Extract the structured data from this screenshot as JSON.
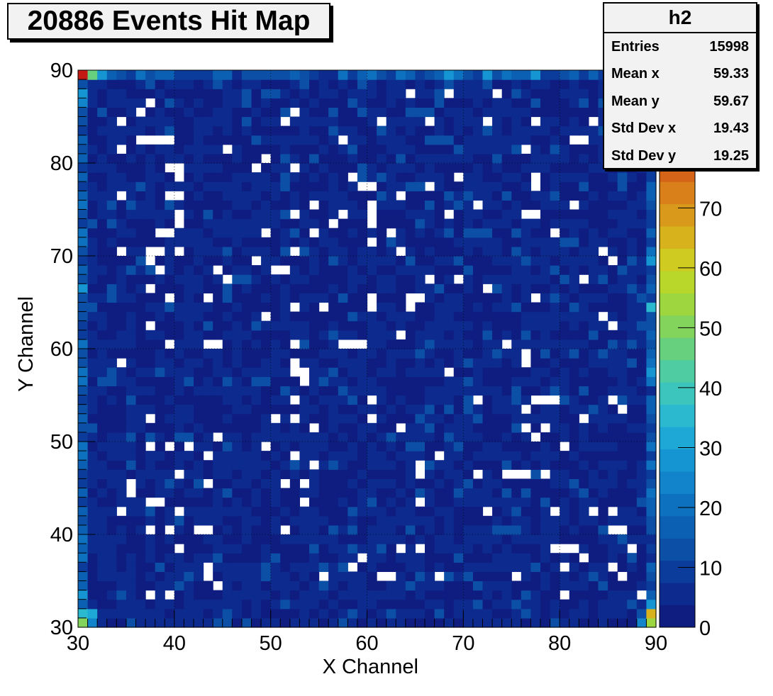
{
  "title": "20886 Events Hit Map",
  "stats": {
    "name": "h2",
    "rows": [
      {
        "label": "Entries",
        "value": "15998"
      },
      {
        "label": "Mean x",
        "value": "59.33"
      },
      {
        "label": "Mean y",
        "value": "59.67"
      },
      {
        "label": "Std Dev x",
        "value": "19.43"
      },
      {
        "label": "Std Dev y",
        "value": "19.25"
      }
    ]
  },
  "chart_data": {
    "type": "heatmap",
    "title": "20886 Events Hit Map",
    "xlabel": "X Channel",
    "ylabel": "Y Channel",
    "xlim": [
      30,
      90
    ],
    "ylim": [
      30,
      90
    ],
    "x_ticks": [
      30,
      40,
      50,
      60,
      70,
      80,
      90
    ],
    "y_ticks": [
      30,
      40,
      50,
      60,
      70,
      80,
      90
    ],
    "bins_x": 60,
    "bins_y": 60,
    "zlim": [
      0,
      93
    ],
    "z_ticks": [
      0,
      10,
      20,
      30,
      40,
      50,
      60,
      70
    ],
    "grid": true,
    "typical_bin_value": 4,
    "empty_bins": [
      [
        37,
        86
      ],
      [
        34,
        84
      ],
      [
        36,
        85
      ],
      [
        52,
        85
      ],
      [
        51,
        84
      ],
      [
        64,
        87
      ],
      [
        68,
        87
      ],
      [
        73,
        87
      ],
      [
        61,
        84
      ],
      [
        66,
        84
      ],
      [
        72,
        84
      ],
      [
        77,
        84
      ],
      [
        83,
        84
      ],
      [
        89,
        84
      ],
      [
        88,
        83
      ],
      [
        36,
        82
      ],
      [
        37,
        82
      ],
      [
        38,
        82
      ],
      [
        39,
        82
      ],
      [
        57,
        82
      ],
      [
        81,
        82
      ],
      [
        82,
        82
      ],
      [
        34,
        81
      ],
      [
        45,
        81
      ],
      [
        76,
        81
      ],
      [
        49,
        80
      ],
      [
        48,
        79
      ],
      [
        39,
        79
      ],
      [
        40,
        79
      ],
      [
        40,
        78
      ],
      [
        52,
        79
      ],
      [
        58,
        78
      ],
      [
        69,
        78
      ],
      [
        77,
        78
      ],
      [
        77,
        77
      ],
      [
        66,
        77
      ],
      [
        59,
        77
      ],
      [
        60,
        77
      ],
      [
        40,
        76
      ],
      [
        63,
        76
      ],
      [
        34,
        76
      ],
      [
        39,
        76
      ],
      [
        54,
        75
      ],
      [
        60,
        75
      ],
      [
        71,
        75
      ],
      [
        81,
        75
      ],
      [
        40,
        74
      ],
      [
        52,
        74
      ],
      [
        57,
        74
      ],
      [
        60,
        74
      ],
      [
        68,
        74
      ],
      [
        76,
        74
      ],
      [
        77,
        74
      ],
      [
        40,
        73
      ],
      [
        56,
        73
      ],
      [
        60,
        73
      ],
      [
        62,
        72
      ],
      [
        54,
        72
      ],
      [
        79,
        72
      ],
      [
        38,
        72
      ],
      [
        39,
        72
      ],
      [
        49,
        72
      ],
      [
        60,
        71
      ],
      [
        34,
        70
      ],
      [
        37,
        70
      ],
      [
        38,
        70
      ],
      [
        40,
        70
      ],
      [
        52,
        70
      ],
      [
        63,
        70
      ],
      [
        84,
        70
      ],
      [
        37,
        69
      ],
      [
        48,
        69
      ],
      [
        85,
        69
      ],
      [
        38,
        68
      ],
      [
        44,
        68
      ],
      [
        50,
        68
      ],
      [
        51,
        68
      ],
      [
        45,
        67
      ],
      [
        66,
        67
      ],
      [
        69,
        67
      ],
      [
        82,
        67
      ],
      [
        72,
        66
      ],
      [
        37,
        66
      ],
      [
        39,
        65
      ],
      [
        43,
        65
      ],
      [
        52,
        64
      ],
      [
        55,
        64
      ],
      [
        60,
        65
      ],
      [
        60,
        64
      ],
      [
        64,
        65
      ],
      [
        65,
        65
      ],
      [
        64,
        64
      ],
      [
        77,
        65
      ],
      [
        49,
        63
      ],
      [
        84,
        63
      ],
      [
        37,
        62
      ],
      [
        85,
        62
      ],
      [
        63,
        61
      ],
      [
        74,
        60
      ],
      [
        39,
        60
      ],
      [
        43,
        60
      ],
      [
        44,
        60
      ],
      [
        52,
        60
      ],
      [
        57,
        60
      ],
      [
        58,
        60
      ],
      [
        59,
        60
      ],
      [
        76,
        59
      ],
      [
        76,
        58
      ],
      [
        34,
        58
      ],
      [
        52,
        58
      ],
      [
        52,
        57
      ],
      [
        53,
        57
      ],
      [
        53,
        56
      ],
      [
        68,
        57
      ],
      [
        52,
        54
      ],
      [
        60,
        54
      ],
      [
        71,
        54
      ],
      [
        77,
        54
      ],
      [
        78,
        54
      ],
      [
        79,
        54
      ],
      [
        85,
        54
      ],
      [
        86,
        53
      ],
      [
        76,
        53
      ],
      [
        37,
        52
      ],
      [
        50,
        52
      ],
      [
        52,
        52
      ],
      [
        60,
        52
      ],
      [
        82,
        52
      ],
      [
        54,
        51
      ],
      [
        63,
        51
      ],
      [
        76,
        51
      ],
      [
        78,
        51
      ],
      [
        77,
        50
      ],
      [
        44,
        50
      ],
      [
        37,
        49
      ],
      [
        39,
        49
      ],
      [
        41,
        49
      ],
      [
        49,
        49
      ],
      [
        80,
        49
      ],
      [
        43,
        48
      ],
      [
        52,
        48
      ],
      [
        67,
        48
      ],
      [
        54,
        47
      ],
      [
        65,
        47
      ],
      [
        65,
        46
      ],
      [
        40,
        46
      ],
      [
        71,
        46
      ],
      [
        74,
        46
      ],
      [
        75,
        46
      ],
      [
        76,
        46
      ],
      [
        78,
        46
      ],
      [
        35,
        45
      ],
      [
        43,
        45
      ],
      [
        51,
        45
      ],
      [
        53,
        45
      ],
      [
        35,
        44
      ],
      [
        37,
        43
      ],
      [
        38,
        43
      ],
      [
        53,
        43
      ],
      [
        65,
        43
      ],
      [
        34,
        42
      ],
      [
        40,
        42
      ],
      [
        72,
        42
      ],
      [
        79,
        42
      ],
      [
        83,
        42
      ],
      [
        85,
        42
      ],
      [
        37,
        40
      ],
      [
        39,
        40
      ],
      [
        42,
        40
      ],
      [
        43,
        40
      ],
      [
        51,
        40
      ],
      [
        85,
        40
      ],
      [
        86,
        40
      ],
      [
        40,
        38
      ],
      [
        63,
        38
      ],
      [
        65,
        38
      ],
      [
        79,
        38
      ],
      [
        80,
        38
      ],
      [
        81,
        38
      ],
      [
        87,
        38
      ],
      [
        59,
        37
      ],
      [
        82,
        37
      ],
      [
        58,
        36
      ],
      [
        43,
        36
      ],
      [
        80,
        36
      ],
      [
        85,
        36
      ],
      [
        43,
        35
      ],
      [
        55,
        35
      ],
      [
        61,
        35
      ],
      [
        62,
        35
      ],
      [
        67,
        35
      ],
      [
        75,
        35
      ],
      [
        86,
        35
      ],
      [
        44,
        34
      ],
      [
        37,
        33
      ],
      [
        39,
        33
      ],
      [
        80,
        33
      ],
      [
        88,
        33
      ]
    ],
    "hot_bins": [
      {
        "x": 30,
        "y": 89,
        "value": 88
      },
      {
        "x": 31,
        "y": 89,
        "value": 48
      },
      {
        "x": 32,
        "y": 89,
        "value": 27
      },
      {
        "x": 30,
        "y": 30,
        "value": 50
      },
      {
        "x": 30,
        "y": 31,
        "value": 35
      },
      {
        "x": 31,
        "y": 30,
        "value": 26
      },
      {
        "x": 31,
        "y": 31,
        "value": 30
      },
      {
        "x": 89,
        "y": 30,
        "value": 55
      },
      {
        "x": 89,
        "y": 31,
        "value": 66
      },
      {
        "x": 89,
        "y": 32,
        "value": 28
      },
      {
        "x": 88,
        "y": 30,
        "value": 24
      },
      {
        "x": 89,
        "y": 89,
        "value": 24
      },
      {
        "x": 89,
        "y": 64,
        "value": 35
      },
      {
        "x": 30,
        "y": 86,
        "value": 24
      }
    ]
  },
  "colors": {
    "palette": [
      "#0f1c80",
      "#0d2b8e",
      "#0c3c9b",
      "#0c4fa7",
      "#0c60b3",
      "#0e71c0",
      "#1284cc",
      "#1596d2",
      "#1da8d6",
      "#2bb9cf",
      "#3cc5bc",
      "#4fcca1",
      "#66d07f",
      "#82d45c",
      "#9ed63f",
      "#b9d62b",
      "#cfcb20",
      "#d7b21d",
      "#d99a1b",
      "#d9801a",
      "#d56419",
      "#d04717",
      "#c92d15",
      "#c31a14",
      "#bf1212"
    ],
    "background": "#ffffff",
    "text": "#000000"
  }
}
